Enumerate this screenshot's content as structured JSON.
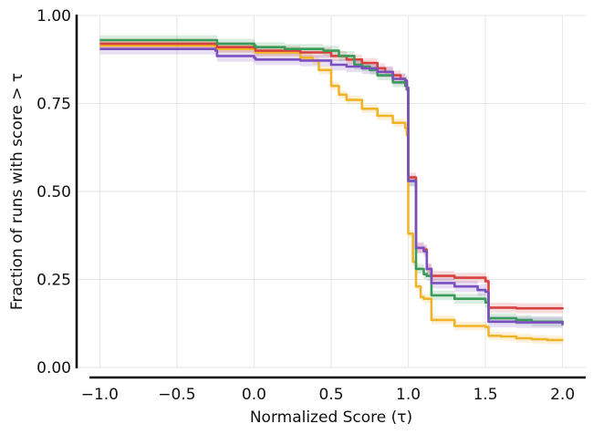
{
  "chart_data": {
    "type": "line",
    "title": "",
    "xlabel": "Normalized Score (τ)",
    "ylabel": "Fraction of runs with score > τ",
    "xlim": [
      -1.15,
      2.15
    ],
    "ylim": [
      0.0,
      1.0
    ],
    "grid": true,
    "x_ticks": [
      -1.0,
      -0.5,
      0.0,
      0.5,
      1.0,
      1.5,
      2.0
    ],
    "x_tick_labels": [
      "−1.0",
      "−0.5",
      "0.0",
      "0.5",
      "1.0",
      "1.5",
      "2.0"
    ],
    "y_ticks": [
      0.0,
      0.25,
      0.5,
      0.75,
      1.0
    ],
    "y_tick_labels": [
      "0.00",
      "0.25",
      "0.50",
      "0.75",
      "1.00"
    ],
    "series": [
      {
        "name": "orange",
        "color": "#f0b429",
        "band": 0.012,
        "x": [
          -1.0,
          -0.25,
          -0.24,
          0.0,
          0.01,
          0.3,
          0.38,
          0.42,
          0.5,
          0.55,
          0.6,
          0.7,
          0.8,
          0.9,
          0.98,
          0.99,
          1.0,
          1.03,
          1.05,
          1.08,
          1.1,
          1.15,
          1.3,
          1.5,
          1.52,
          1.6,
          1.7,
          1.8,
          1.9,
          2.0
        ],
        "y": [
          0.915,
          0.912,
          0.905,
          0.902,
          0.895,
          0.88,
          0.872,
          0.845,
          0.8,
          0.775,
          0.76,
          0.735,
          0.715,
          0.695,
          0.68,
          0.66,
          0.38,
          0.3,
          0.23,
          0.2,
          0.195,
          0.135,
          0.118,
          0.115,
          0.09,
          0.088,
          0.083,
          0.08,
          0.078,
          0.076
        ]
      },
      {
        "name": "red",
        "color": "#d94040",
        "band": 0.014,
        "x": [
          -1.0,
          -0.25,
          -0.24,
          0.0,
          0.01,
          0.3,
          0.5,
          0.6,
          0.7,
          0.8,
          0.85,
          0.9,
          0.95,
          0.98,
          0.99,
          1.0,
          1.05,
          1.1,
          1.12,
          1.15,
          1.3,
          1.5,
          1.52,
          1.7,
          2.0
        ],
        "y": [
          0.92,
          0.92,
          0.91,
          0.908,
          0.9,
          0.895,
          0.885,
          0.875,
          0.865,
          0.85,
          0.84,
          0.83,
          0.82,
          0.81,
          0.79,
          0.54,
          0.34,
          0.335,
          0.28,
          0.26,
          0.255,
          0.245,
          0.17,
          0.168,
          0.165
        ]
      },
      {
        "name": "green",
        "color": "#3a9a5a",
        "band": 0.014,
        "x": [
          -1.0,
          -0.25,
          -0.24,
          0.0,
          0.01,
          0.2,
          0.45,
          0.55,
          0.65,
          0.7,
          0.75,
          0.8,
          0.9,
          0.98,
          0.99,
          1.0,
          1.05,
          1.1,
          1.12,
          1.15,
          1.3,
          1.5,
          1.52,
          1.7,
          1.8,
          2.0
        ],
        "y": [
          0.93,
          0.93,
          0.92,
          0.915,
          0.91,
          0.905,
          0.9,
          0.885,
          0.86,
          0.855,
          0.845,
          0.83,
          0.81,
          0.8,
          0.79,
          0.53,
          0.28,
          0.265,
          0.26,
          0.205,
          0.195,
          0.185,
          0.14,
          0.135,
          0.13,
          0.128
        ]
      },
      {
        "name": "purple",
        "color": "#7c4fbf",
        "band": 0.016,
        "x": [
          -1.0,
          -0.25,
          -0.24,
          0.0,
          0.01,
          0.3,
          0.5,
          0.6,
          0.7,
          0.8,
          0.9,
          0.98,
          0.99,
          1.0,
          1.05,
          1.1,
          1.12,
          1.15,
          1.3,
          1.45,
          1.5,
          1.52,
          1.7,
          2.0
        ],
        "y": [
          0.905,
          0.9,
          0.885,
          0.88,
          0.875,
          0.872,
          0.86,
          0.855,
          0.85,
          0.84,
          0.82,
          0.815,
          0.795,
          0.53,
          0.34,
          0.33,
          0.28,
          0.24,
          0.23,
          0.22,
          0.215,
          0.13,
          0.128,
          0.12
        ]
      }
    ]
  }
}
